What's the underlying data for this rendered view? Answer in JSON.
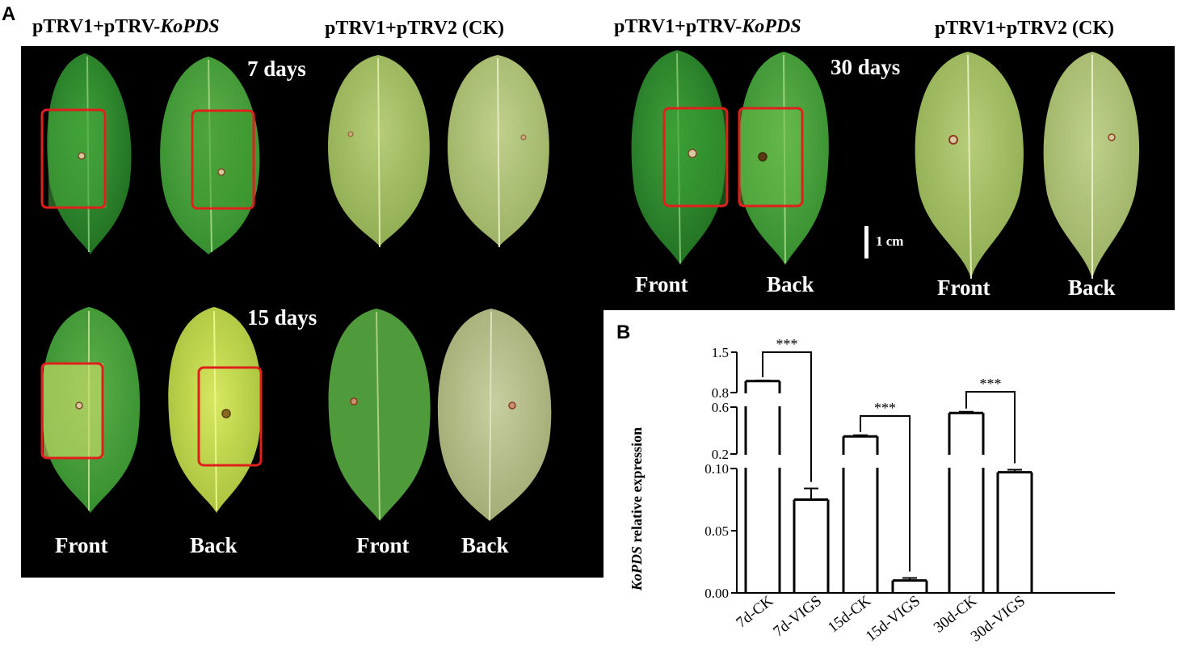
{
  "panel_a": {
    "letter": "A",
    "headers": [
      {
        "prefix": "pTRV1+pTRV-",
        "italic": "KoPDS"
      },
      {
        "prefix": "pTRV1+pTRV2 (CK)",
        "italic": ""
      },
      {
        "prefix": "pTRV1+pTRV-",
        "italic": "KoPDS"
      },
      {
        "prefix": "pTRV1+pTRV2 (CK)",
        "italic": ""
      }
    ],
    "timepoints": [
      "7 days",
      "15 days",
      "30 days"
    ],
    "side_labels": {
      "front": "Front",
      "back": "Back"
    },
    "scale_bar": "1 cm",
    "colors": {
      "background": "#000000",
      "vigs_highlight_box": "#e0201c",
      "ck_leaf": "#a9c26a",
      "vigs_leaf": "#2f8a2a"
    }
  },
  "panel_b": {
    "letter": "B",
    "ylabel_italic": "KoPDS",
    "ylabel_rest": " relative expression",
    "significance": "***"
  },
  "chart_data": {
    "type": "bar",
    "categories": [
      "7d-CK",
      "7d-VIGS",
      "15d-CK",
      "15d-VIGS",
      "30d-CK",
      "30d-VIGS"
    ],
    "values": [
      1.0,
      0.075,
      0.35,
      0.01,
      0.55,
      0.097
    ],
    "errors": [
      0.01,
      0.009,
      0.01,
      0.002,
      0.01,
      0.002
    ],
    "ylabel": "KoPDS relative expression",
    "axis_breaks": [
      [
        0.1,
        0.2
      ],
      [
        0.6,
        0.8
      ]
    ],
    "yticks": [
      "0.00",
      "0.05",
      "0.10",
      "0.2",
      "0.6",
      "0.8",
      "1.5"
    ],
    "ylim": [
      0,
      1.5
    ],
    "comparisons": [
      {
        "pair": [
          "7d-CK",
          "7d-VIGS"
        ],
        "label": "***"
      },
      {
        "pair": [
          "15d-CK",
          "15d-VIGS"
        ],
        "label": "***"
      },
      {
        "pair": [
          "30d-CK",
          "30d-VIGS"
        ],
        "label": "***"
      }
    ],
    "grid": false
  }
}
